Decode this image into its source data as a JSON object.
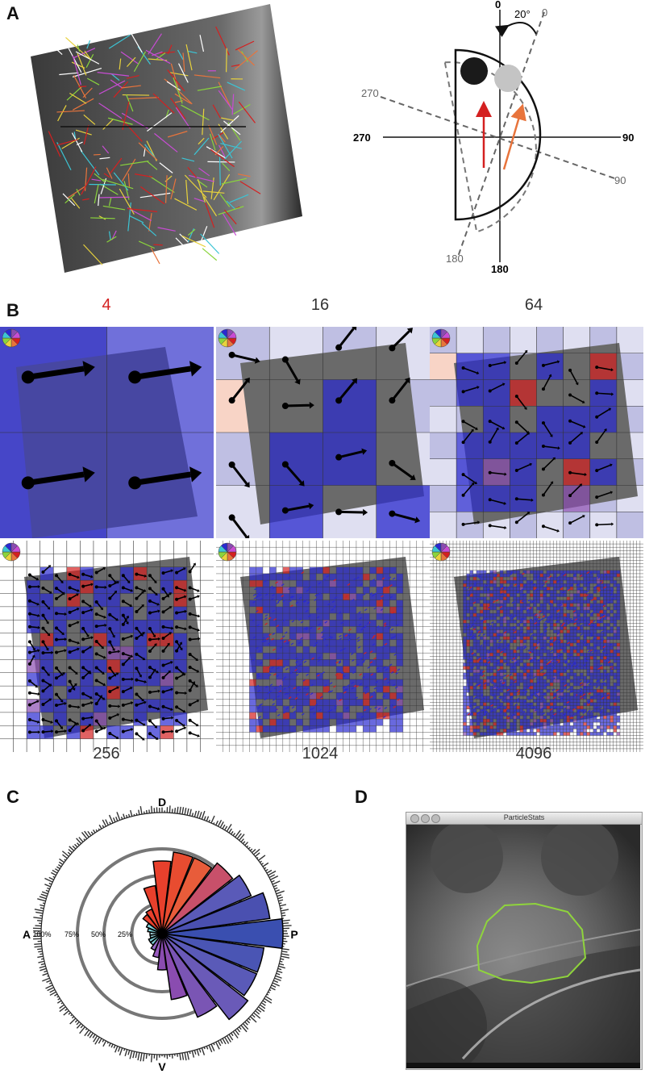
{
  "panels": {
    "a": {
      "label": "A"
    },
    "b": {
      "label": "B"
    },
    "c": {
      "label": "C"
    },
    "d": {
      "label": "D"
    }
  },
  "diagram": {
    "angle_label": "20°",
    "solid_axis": {
      "top": "0",
      "left": "270",
      "right": "90",
      "bottom": "180"
    },
    "dashed_axis": {
      "top": "0",
      "left": "270",
      "right": "90",
      "bottom": "180"
    }
  },
  "grid_panels": [
    {
      "count": "4",
      "color": "#d42020"
    },
    {
      "count": "16",
      "color": "#333333"
    },
    {
      "count": "64",
      "color": "#333333"
    },
    {
      "count": "256",
      "color": "#333333"
    },
    {
      "count": "1024",
      "color": "#333333"
    },
    {
      "count": "4096",
      "color": "#333333"
    }
  ],
  "rose": {
    "labels": {
      "dorsal": "D",
      "ventral": "V",
      "anterior": "A",
      "posterior": "P"
    },
    "rings": [
      "100%",
      "75%",
      "50%",
      "25%"
    ],
    "colors": {
      "dorsal": "#e8402c",
      "posterior": "#3a4fb0",
      "ventral": "#8a4cb0",
      "anterior": "#7fd0d8"
    }
  },
  "window": {
    "title": "ParticleStats"
  }
}
